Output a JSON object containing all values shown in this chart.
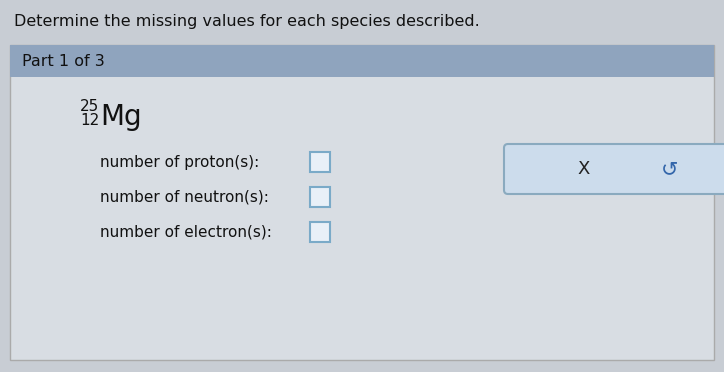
{
  "title": "Determine the missing values for each species described.",
  "part_label": "Part 1 of 3",
  "element_mass": "25",
  "element_atomic": "12",
  "element_symbol": "Mg",
  "labels": [
    "number of proton(s):",
    "number of neutron(s):",
    "number of electron(s):"
  ],
  "bg_color": "#c8cdd4",
  "header_color": "#8fa4be",
  "card_color": "#d8dde3",
  "card_border": "#aaaaaa",
  "box_stroke": "#7aaac8",
  "box_fill": "#e8f0f8",
  "title_fontsize": 11.5,
  "part_fontsize": 11.5,
  "label_fontsize": 11,
  "button_bg": "#ccdcec",
  "button_border": "#8aaabf",
  "x_label": "X",
  "arrow_label": "↺",
  "fig_w": 7.24,
  "fig_h": 3.72,
  "dpi": 100
}
